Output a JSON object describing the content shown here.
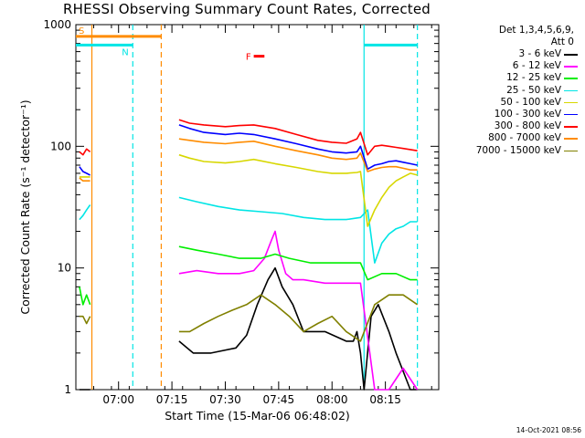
{
  "chart_data": {
    "type": "line",
    "title": "RHESSI Observing Summary Count Rates, Corrected",
    "xlabel": "Start Time (15-Mar-06 06:48:02)",
    "ylabel": "Corrected Count Rate (s⁻¹ detector⁻¹)",
    "y_scale": "log",
    "ylim": [
      1,
      1000
    ],
    "xlim_minutes": [
      0,
      102
    ],
    "x_ticks": [
      {
        "label": "07:00",
        "min": 12
      },
      {
        "label": "07:15",
        "min": 27
      },
      {
        "label": "07:30",
        "min": 42
      },
      {
        "label": "07:45",
        "min": 57
      },
      {
        "label": "08:00",
        "min": 72
      },
      {
        "label": "08:15",
        "min": 87
      }
    ],
    "y_ticks": [
      {
        "label": "1",
        "value": 1
      },
      {
        "label": "10",
        "value": 10
      },
      {
        "label": "100",
        "value": 100
      },
      {
        "label": "1000",
        "value": 1000
      }
    ],
    "legend_header": [
      "Det 1,3,4,5,6,9,",
      "Att 0"
    ],
    "series": [
      {
        "name": "3 - 6 keV",
        "color": "#000000",
        "x": [
          1,
          2,
          3,
          4,
          29,
          33,
          38,
          45,
          48,
          51,
          54,
          56,
          58,
          61,
          64,
          70,
          76,
          78,
          79,
          80,
          81,
          83,
          85,
          88,
          90,
          94,
          96
        ],
        "y": [
          1,
          1,
          1,
          1,
          2.5,
          2,
          2,
          2.2,
          2.8,
          5,
          8,
          10,
          7,
          5,
          3,
          3,
          2.5,
          2.5,
          3,
          2,
          1,
          4,
          5,
          3,
          2,
          1,
          1
        ]
      },
      {
        "name": "6 - 12 keV",
        "color": "#ff00ff",
        "x": [
          29,
          34,
          40,
          46,
          50,
          53,
          55,
          56,
          57,
          59,
          61,
          64,
          70,
          76,
          80,
          84,
          88,
          92,
          96
        ],
        "y": [
          9,
          9.5,
          9,
          9,
          9.5,
          12,
          17,
          20,
          14,
          9,
          8,
          8,
          7.5,
          7.5,
          7.5,
          1,
          1,
          1.5,
          1
        ]
      },
      {
        "name": "12 - 25 keV",
        "color": "#00ee00",
        "x": [
          1,
          2,
          3,
          4,
          29,
          34,
          40,
          46,
          52,
          56,
          60,
          66,
          72,
          76,
          80,
          82,
          86,
          90,
          94,
          96
        ],
        "y": [
          7,
          5,
          6,
          5,
          15,
          14,
          13,
          12,
          12,
          13,
          12,
          11,
          11,
          11,
          11,
          8,
          9,
          9,
          8,
          8
        ]
      },
      {
        "name": "25 - 50 keV",
        "color": "#00e5e5",
        "x": [
          1,
          2,
          3,
          4,
          29,
          34,
          40,
          46,
          52,
          58,
          64,
          70,
          76,
          80,
          82,
          84,
          86,
          88,
          90,
          92,
          94,
          96
        ],
        "y": [
          25,
          27,
          30,
          33,
          38,
          35,
          32,
          30,
          29,
          28,
          26,
          25,
          25,
          26,
          30,
          11,
          16,
          19,
          21,
          22,
          24,
          24
        ]
      },
      {
        "name": "50 - 100 keV",
        "color": "#d7d700",
        "x": [
          1,
          2,
          3,
          4,
          29,
          32,
          36,
          42,
          46,
          50,
          56,
          62,
          68,
          72,
          76,
          79,
          80,
          82,
          84,
          86,
          88,
          90,
          92,
          94,
          96
        ],
        "y": [
          56,
          56,
          56,
          56,
          85,
          80,
          75,
          73,
          75,
          78,
          72,
          67,
          62,
          60,
          60,
          61,
          62,
          22,
          30,
          38,
          46,
          52,
          56,
          60,
          58
        ]
      },
      {
        "name": "100 - 300 keV",
        "color": "#0000ff",
        "x": [
          1,
          2,
          3,
          4,
          29,
          32,
          36,
          42,
          46,
          50,
          56,
          62,
          68,
          72,
          76,
          79,
          80,
          82,
          84,
          86,
          88,
          90,
          92,
          94,
          96
        ],
        "y": [
          68,
          62,
          60,
          58,
          150,
          140,
          130,
          125,
          128,
          125,
          115,
          105,
          95,
          90,
          88,
          90,
          100,
          65,
          70,
          72,
          75,
          76,
          74,
          72,
          70
        ]
      },
      {
        "name": "300 - 800 keV",
        "color": "#ff0000",
        "x": [
          1,
          2,
          3,
          4,
          29,
          32,
          36,
          42,
          46,
          50,
          56,
          62,
          68,
          72,
          76,
          79,
          80,
          82,
          84,
          86,
          88,
          90,
          92,
          94,
          96
        ],
        "y": [
          90,
          85,
          95,
          90,
          165,
          155,
          150,
          145,
          148,
          150,
          140,
          125,
          112,
          108,
          106,
          115,
          130,
          85,
          100,
          102,
          100,
          98,
          96,
          94,
          92
        ]
      },
      {
        "name": "800 - 7000 keV",
        "color": "#ff8c00",
        "x": [
          1,
          2,
          3,
          4,
          29,
          32,
          36,
          42,
          46,
          50,
          56,
          62,
          68,
          72,
          76,
          79,
          80,
          82,
          84,
          86,
          88,
          90,
          92,
          94,
          96
        ],
        "y": [
          55,
          52,
          52,
          52,
          115,
          112,
          108,
          105,
          108,
          110,
          100,
          92,
          85,
          80,
          78,
          80,
          88,
          62,
          65,
          67,
          68,
          68,
          66,
          64,
          64
        ]
      },
      {
        "name": "7000 - 15000 keV",
        "color": "#808000",
        "x": [
          1,
          2,
          3,
          4,
          29,
          32,
          36,
          40,
          44,
          48,
          52,
          56,
          60,
          64,
          68,
          72,
          76,
          80,
          84,
          88,
          92,
          96
        ],
        "y": [
          4,
          4,
          3.5,
          4,
          3,
          3,
          3.5,
          4,
          4.5,
          5,
          6,
          5,
          4,
          3,
          3.5,
          4,
          3,
          2.5,
          5,
          6,
          6,
          5
        ]
      }
    ],
    "bars": [
      {
        "label": "S",
        "color": "#ff8c00",
        "x_start": 0,
        "x_end": 24,
        "y": 800
      },
      {
        "label": "N",
        "color": "#00e5e5",
        "x_start": 0,
        "x_end": 16,
        "y": 680
      },
      {
        "label": "",
        "color": "#00e5e5",
        "x_start": 81,
        "x_end": 96,
        "y": 680
      },
      {
        "label": "F",
        "color": "#ff0000",
        "x_start": 50,
        "x_end": 53,
        "y": 550
      }
    ],
    "vlines": [
      {
        "x": 4.5,
        "color": "#ff8c00",
        "style": "solid"
      },
      {
        "x": 16,
        "color": "#00e5e5",
        "style": "dashed"
      },
      {
        "x": 24,
        "color": "#ff8c00",
        "style": "dashed"
      },
      {
        "x": 81,
        "color": "#00e5e5",
        "style": "solid"
      },
      {
        "x": 96,
        "color": "#00e5e5",
        "style": "dashed"
      }
    ]
  },
  "footer": {
    "timestamp": "14-Oct-2021 08:56"
  }
}
